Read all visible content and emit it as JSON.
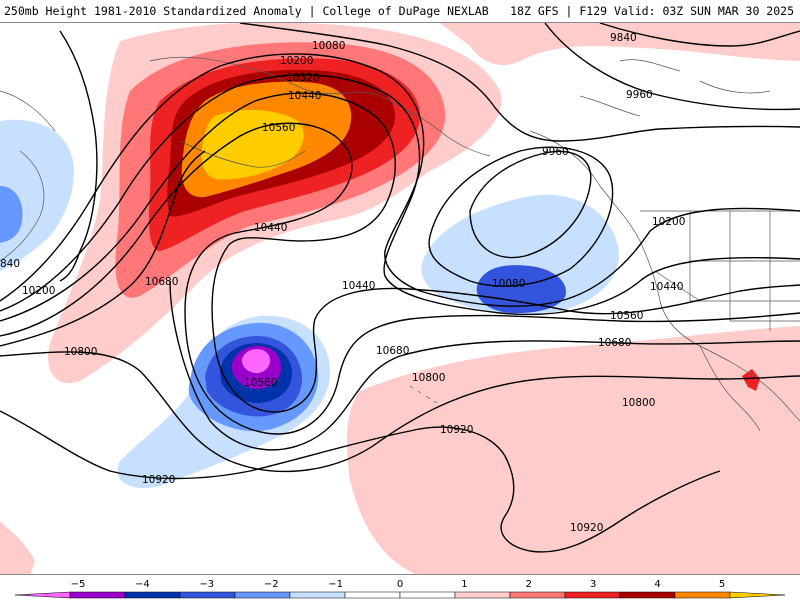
{
  "header": {
    "title": "250mb Height 1981-2010 Standardized Anomaly | College of DuPage NEXLAB",
    "run_info": "18Z GFS | F129 Valid: 03Z SUN MAR 30 2025"
  },
  "map": {
    "contour_color": "#000000",
    "coast_color": "#555555",
    "contour_labels": [
      {
        "id": "c10080-top",
        "text": "10080"
      },
      {
        "id": "c10200-top",
        "text": "10200"
      },
      {
        "id": "c10320-top",
        "text": "10320"
      },
      {
        "id": "c10440-top",
        "text": "10440"
      },
      {
        "id": "c10560-top",
        "text": "10560"
      },
      {
        "id": "c10440-mid",
        "text": "10440"
      },
      {
        "id": "c10680-left",
        "text": "10680"
      },
      {
        "id": "c10200-left",
        "text": "10200"
      },
      {
        "id": "c840-left",
        "text": "840"
      },
      {
        "id": "c10800-left",
        "text": "10800"
      },
      {
        "id": "c10560-low",
        "text": "10560"
      },
      {
        "id": "c10440-center",
        "text": "10440"
      },
      {
        "id": "c10680-center",
        "text": "10680"
      },
      {
        "id": "c10800-center",
        "text": "10800"
      },
      {
        "id": "c10920-center",
        "text": "10920"
      },
      {
        "id": "c10920-left",
        "text": "10920"
      },
      {
        "id": "c10920-bottom",
        "text": "10920"
      },
      {
        "id": "c9840-top",
        "text": "9840"
      },
      {
        "id": "c9960-right",
        "text": "9960"
      },
      {
        "id": "c9960-center",
        "text": "9960"
      },
      {
        "id": "c10080-low",
        "text": "10080"
      },
      {
        "id": "c10200-right",
        "text": "10200"
      },
      {
        "id": "c10440-right",
        "text": "10440"
      },
      {
        "id": "c10560-right",
        "text": "10560"
      },
      {
        "id": "c10680-right",
        "text": "10680"
      },
      {
        "id": "c10800-right",
        "text": "10800"
      }
    ]
  },
  "legend": {
    "ticks": [
      "−5",
      "−4",
      "−3",
      "−2",
      "−1",
      "0",
      "1",
      "2",
      "3",
      "4",
      "5"
    ],
    "colors": [
      "#ff66ff",
      "#9900cc",
      "#0033aa",
      "#3355dd",
      "#6699ff",
      "#c8e0ff",
      "#ffffff",
      "#ffffff",
      "#ffcccc",
      "#ff7777",
      "#ee2222",
      "#aa0000",
      "#ff8800",
      "#ffcc00"
    ]
  }
}
